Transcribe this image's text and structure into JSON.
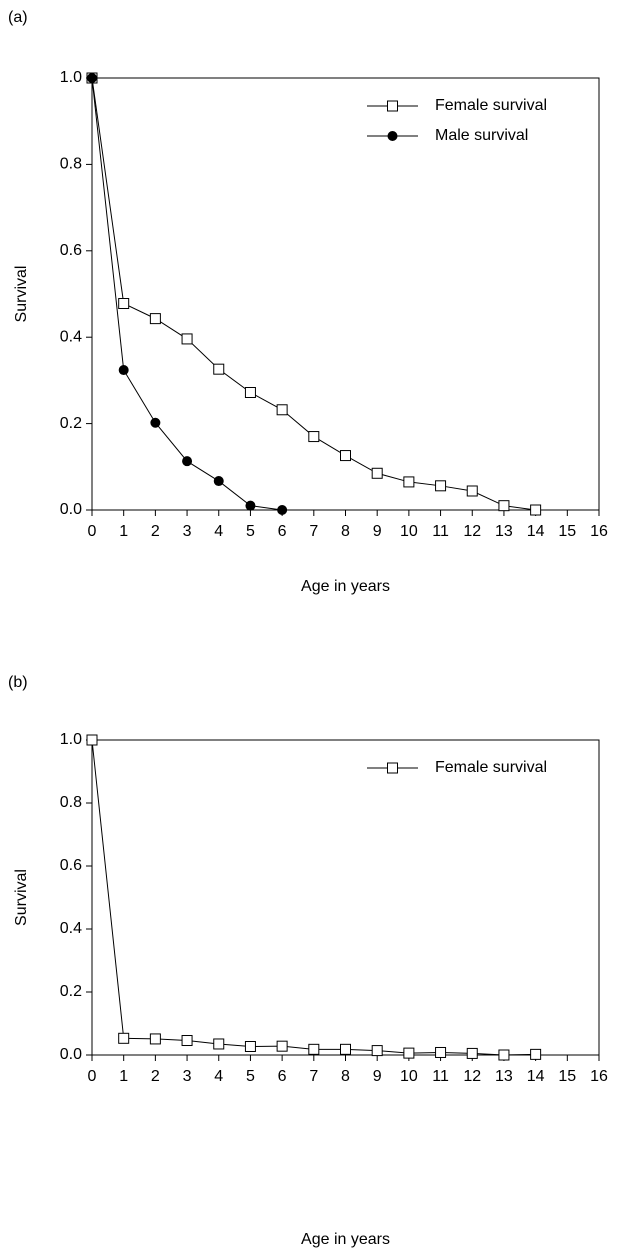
{
  "chart_data": [
    {
      "type": "line",
      "panel_label": "(a)",
      "x_label": "Age in years",
      "y_label": "Survival",
      "x": [
        0,
        1,
        2,
        3,
        4,
        5,
        6,
        7,
        8,
        9,
        10,
        11,
        12,
        13,
        14
      ],
      "series": [
        {
          "name": "Female survival",
          "color": "#000000",
          "marker": "open-square",
          "values": [
            1.0,
            0.478,
            0.443,
            0.396,
            0.326,
            0.272,
            0.232,
            0.17,
            0.126,
            0.085,
            0.065,
            0.056,
            0.044,
            0.01,
            0.0
          ]
        },
        {
          "name": "Male survival",
          "color": "#000000",
          "marker": "filled-circle",
          "values": [
            1.0,
            0.324,
            0.202,
            0.113,
            0.067,
            0.01,
            0.0,
            null,
            null,
            null,
            null,
            null,
            null,
            null,
            null
          ]
        }
      ],
      "xlim": [
        0,
        16
      ],
      "xticks": [
        0,
        1,
        2,
        3,
        4,
        5,
        6,
        7,
        8,
        9,
        10,
        11,
        12,
        13,
        14,
        15,
        16
      ],
      "ylim": [
        0,
        1
      ],
      "yticks": [
        {
          "value": 0,
          "label": "0.0"
        },
        {
          "value": 0.2,
          "label": "0.2"
        },
        {
          "value": 0.4,
          "label": "0.4"
        },
        {
          "value": 0.6,
          "label": "0.6"
        },
        {
          "value": 0.8,
          "label": "0.8"
        },
        {
          "value": 1,
          "label": "1.0"
        }
      ],
      "legend": "upper right"
    },
    {
      "type": "line",
      "panel_label": "(b)",
      "x_label": "Age in years",
      "y_label": "Survival",
      "x": [
        0,
        1,
        2,
        3,
        4,
        5,
        6,
        7,
        8,
        9,
        10,
        11,
        12,
        13,
        14
      ],
      "series": [
        {
          "name": "Female survival",
          "color": "#000000",
          "marker": "open-square",
          "values": [
            1.0,
            0.053,
            0.051,
            0.046,
            0.035,
            0.027,
            0.028,
            0.018,
            0.018,
            0.014,
            0.006,
            0.008,
            0.005,
            0.0,
            0.002
          ]
        }
      ],
      "xlim": [
        0,
        16
      ],
      "xticks": [
        0,
        1,
        2,
        3,
        4,
        5,
        6,
        7,
        8,
        9,
        10,
        11,
        12,
        13,
        14,
        15,
        16
      ],
      "ylim": [
        0,
        1
      ],
      "yticks": [
        {
          "value": 0,
          "label": "0.0"
        },
        {
          "value": 0.2,
          "label": "0.2"
        },
        {
          "value": 0.4,
          "label": "0.4"
        },
        {
          "value": 0.6,
          "label": "0.6"
        },
        {
          "value": 0.8,
          "label": "0.8"
        },
        {
          "value": 1,
          "label": "1.0"
        }
      ],
      "legend": "upper right"
    }
  ]
}
